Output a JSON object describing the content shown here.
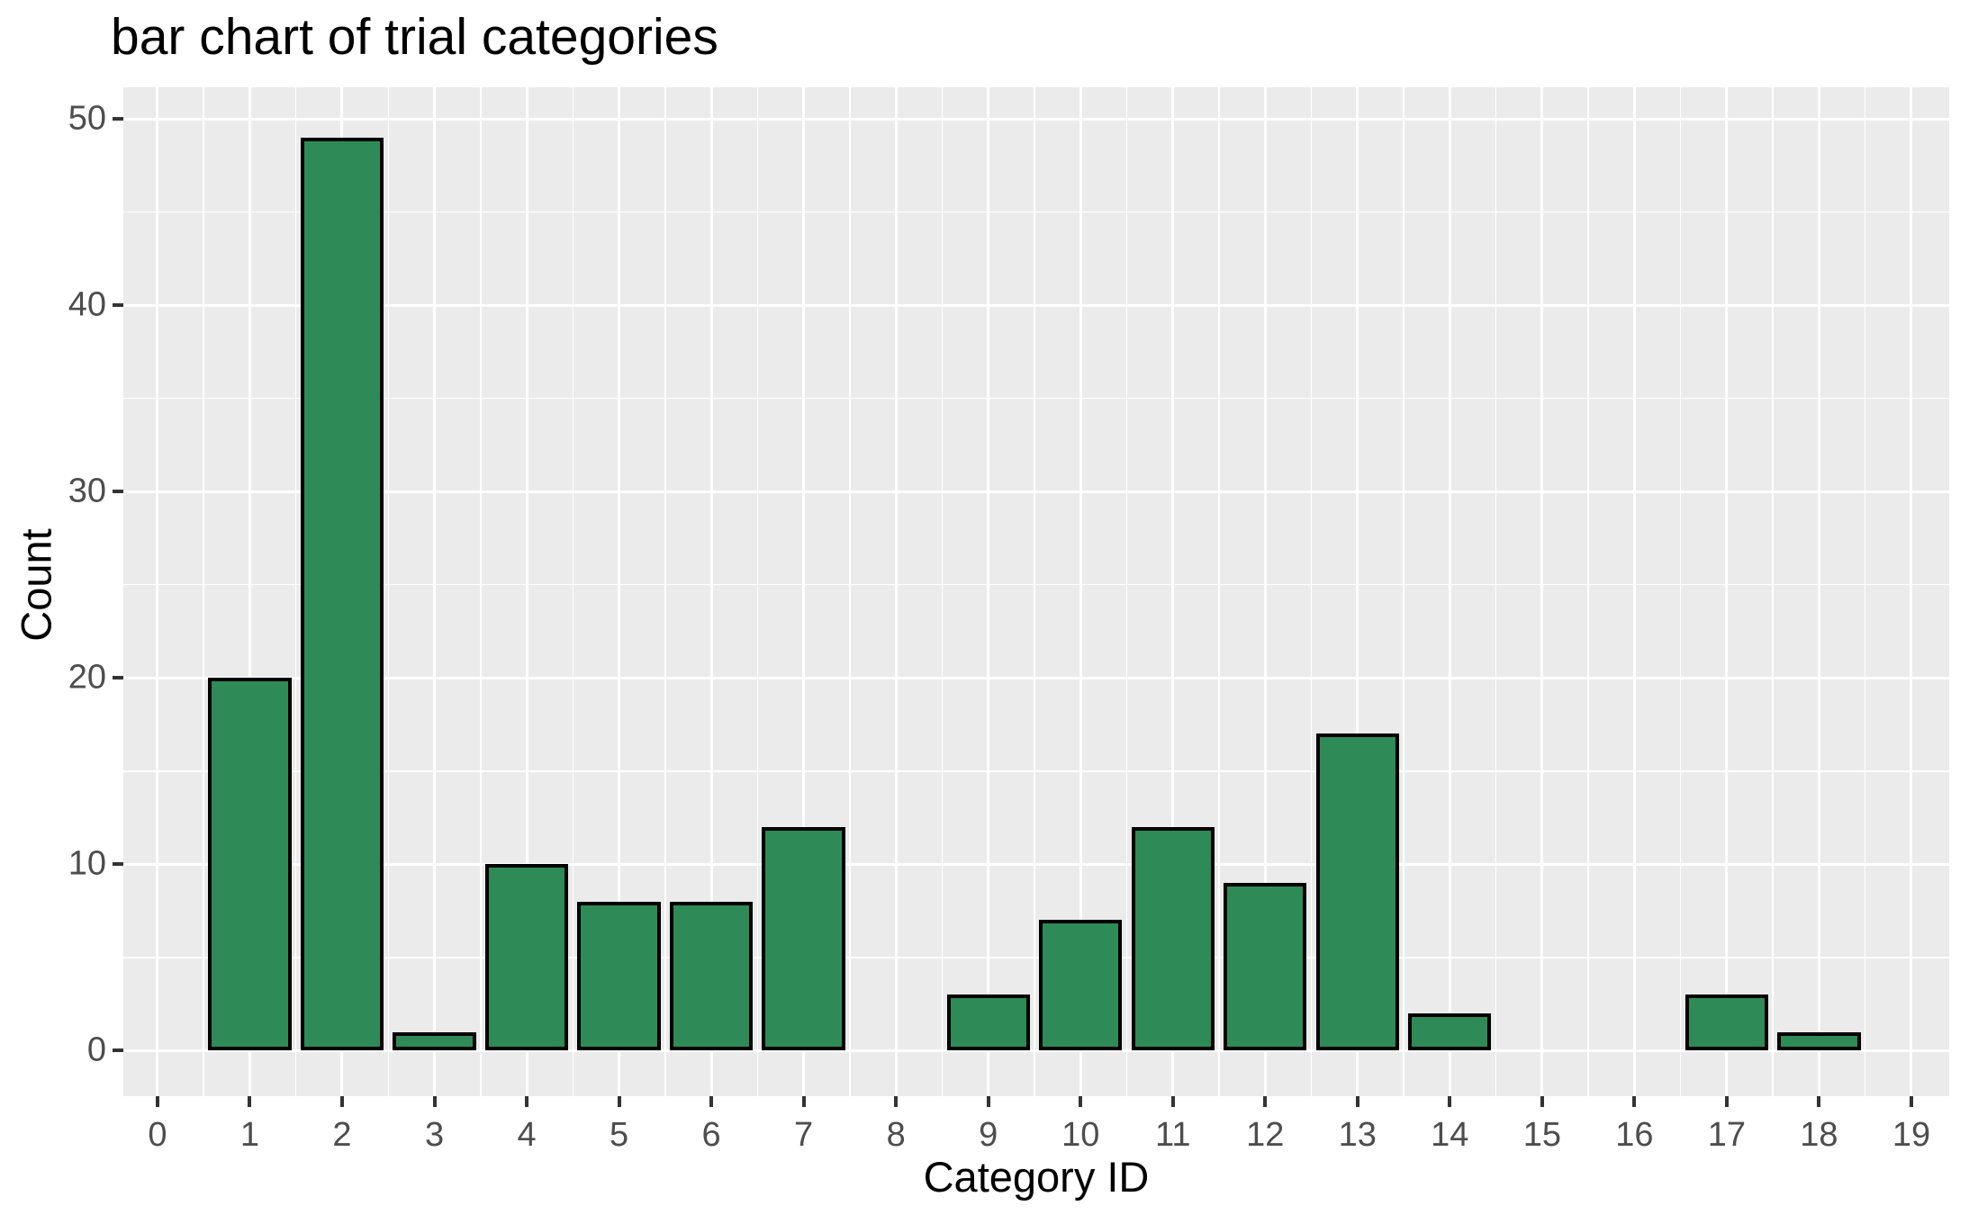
{
  "chart_data": {
    "type": "bar",
    "title": "bar chart of trial categories",
    "xlabel": "Category ID",
    "ylabel": "Count",
    "categories": [
      0,
      1,
      2,
      3,
      4,
      5,
      6,
      7,
      8,
      9,
      10,
      11,
      12,
      13,
      14,
      15,
      16,
      17,
      18,
      19
    ],
    "values": [
      0,
      20,
      49,
      1,
      10,
      8,
      8,
      12,
      0,
      3,
      7,
      12,
      9,
      17,
      2,
      0,
      0,
      3,
      1,
      0
    ],
    "x_ticks": [
      0,
      1,
      2,
      3,
      4,
      5,
      6,
      7,
      8,
      9,
      10,
      11,
      12,
      13,
      14,
      15,
      16,
      17,
      18,
      19
    ],
    "y_ticks": [
      0,
      10,
      20,
      30,
      40,
      50
    ],
    "xlim": [
      -0.37,
      19.41
    ],
    "ylim": [
      -2.45,
      51.7
    ],
    "bar_width": 0.9,
    "grid": "major-and-minor",
    "legend": "none",
    "colors": {
      "bar_fill": "#2E8B57",
      "bar_stroke": "#000000",
      "panel_bg": "#EBEBEB",
      "grid_major": "#FFFFFF",
      "grid_minor": "#FFFFFF",
      "tick_label": "#4D4D4D",
      "axis_title": "#000000",
      "tick_mark": "#333333",
      "background": "#FFFFFF"
    }
  }
}
